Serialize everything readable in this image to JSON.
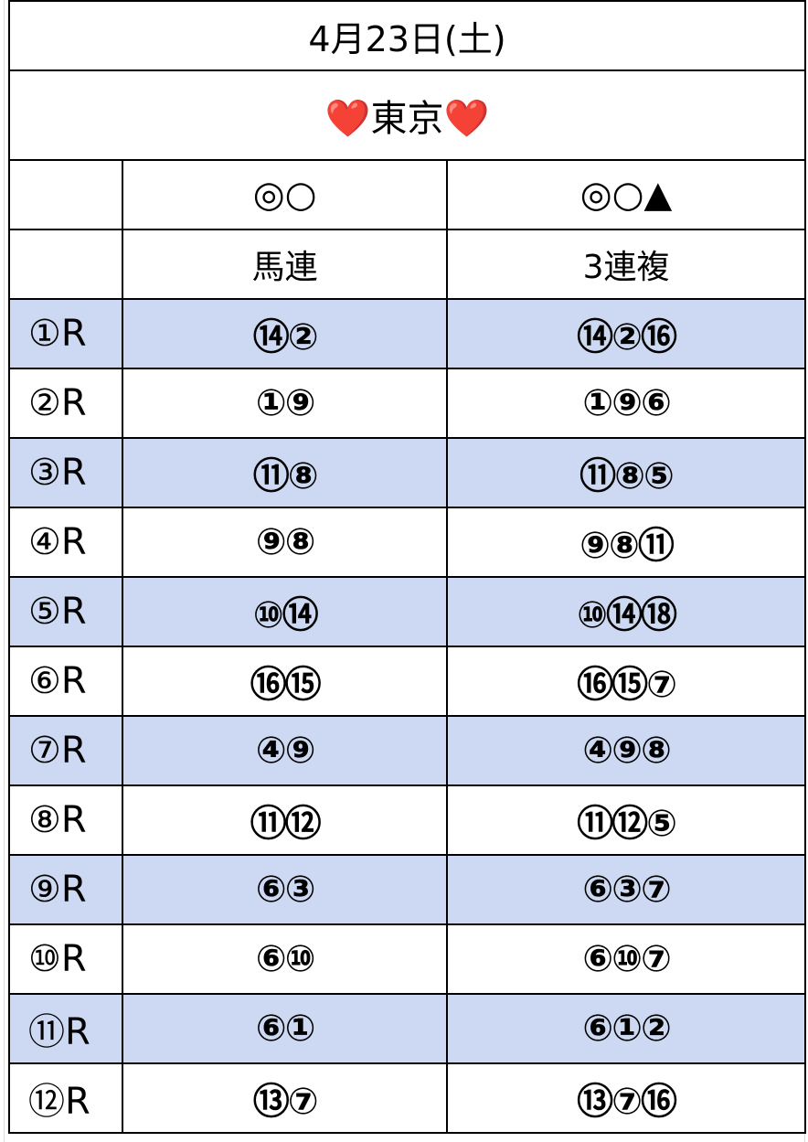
{
  "date": "4月23日(土)",
  "venue": {
    "heart_left": "❤️",
    "name": "東京",
    "heart_right": "❤️"
  },
  "marks": {
    "race": "",
    "umaren": "◎○",
    "sanrenpuku": "◎○▲"
  },
  "bet_types": {
    "race": "",
    "umaren": "馬連",
    "sanrenpuku": "3連複"
  },
  "colors": {
    "shaded_row": "#cdd9f2",
    "border": "#000000",
    "heart": "#e0191f"
  },
  "races": [
    {
      "race": "①R",
      "umaren": "⑭②",
      "sanrenpuku": "⑭②⑯"
    },
    {
      "race": "②R",
      "umaren": "①⑨",
      "sanrenpuku": "①⑨⑥"
    },
    {
      "race": "③R",
      "umaren": "⑪⑧",
      "sanrenpuku": "⑪⑧⑤"
    },
    {
      "race": "④R",
      "umaren": "⑨⑧",
      "sanrenpuku": "⑨⑧⑪"
    },
    {
      "race": "⑤R",
      "umaren": "⑩⑭",
      "sanrenpuku": "⑩⑭⑱"
    },
    {
      "race": "⑥R",
      "umaren": "⑯⑮",
      "sanrenpuku": "⑯⑮⑦"
    },
    {
      "race": "⑦R",
      "umaren": "④⑨",
      "sanrenpuku": "④⑨⑧"
    },
    {
      "race": "⑧R",
      "umaren": "⑪⑫",
      "sanrenpuku": "⑪⑫⑤"
    },
    {
      "race": "⑨R",
      "umaren": "⑥③",
      "sanrenpuku": "⑥③⑦"
    },
    {
      "race": "⑩R",
      "umaren": "⑥⑩",
      "sanrenpuku": "⑥⑩⑦"
    },
    {
      "race": "⑪R",
      "umaren": "⑥①",
      "sanrenpuku": "⑥①②"
    },
    {
      "race": "⑫R",
      "umaren": "⑬⑦",
      "sanrenpuku": "⑬⑦⑯"
    }
  ]
}
